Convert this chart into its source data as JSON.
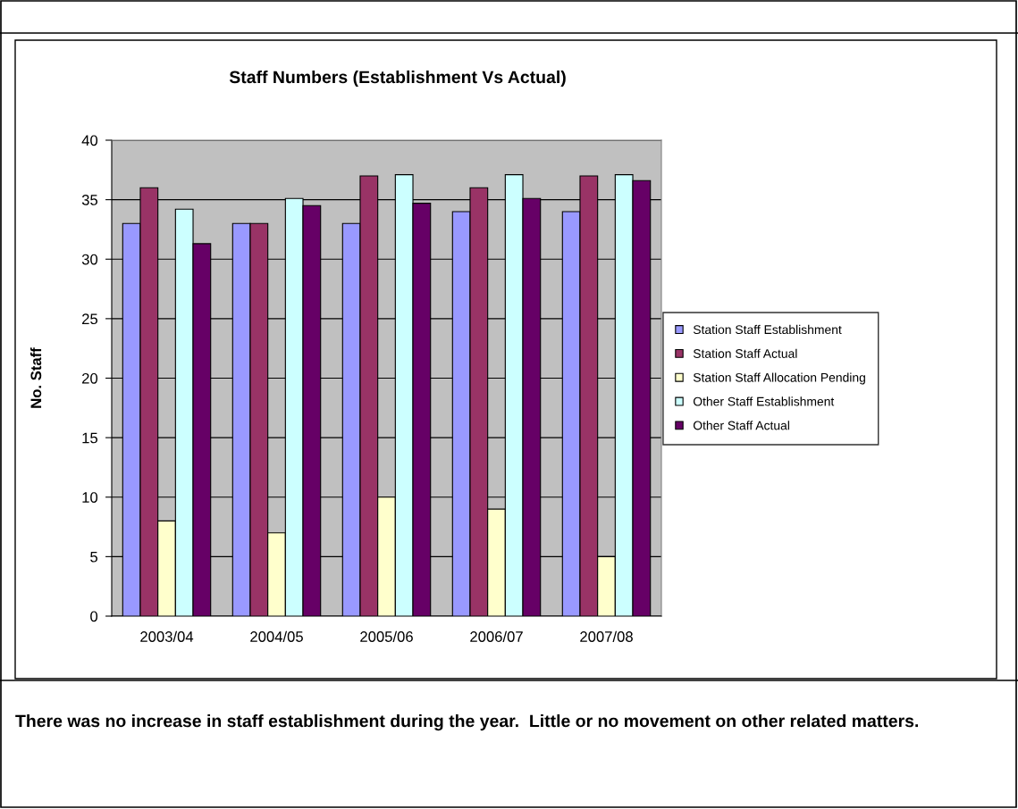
{
  "chart_data": {
    "type": "bar",
    "title": "Staff Numbers (Establishment Vs Actual)",
    "ylabel": "No. Staff",
    "categories": [
      "2003/04",
      "2004/05",
      "2005/06",
      "2006/07",
      "2007/08"
    ],
    "series": [
      {
        "name": "Station Staff Establishment",
        "color": "#9999ff",
        "values": [
          33,
          33,
          33,
          34,
          34
        ]
      },
      {
        "name": "Station Staff Actual",
        "color": "#993366",
        "values": [
          36,
          33,
          37,
          36,
          37
        ]
      },
      {
        "name": "Station Staff Allocation Pending",
        "color": "#ffffcc",
        "values": [
          8,
          7,
          10,
          9,
          5
        ]
      },
      {
        "name": "Other Staff Establishment",
        "color": "#ccffff",
        "values": [
          34.2,
          35.1,
          37.1,
          37.1,
          37.1
        ]
      },
      {
        "name": "Other Staff Actual",
        "color": "#660066",
        "values": [
          31.3,
          34.5,
          34.7,
          35.1,
          36.6
        ]
      }
    ],
    "ylim": [
      0,
      40
    ],
    "yticks": [
      0,
      5,
      10,
      15,
      20,
      25,
      30,
      35,
      40
    ],
    "grid": "y",
    "legend": "right",
    "annotations": [
      "There was no increase in staff establishment during the year.  Little or no movement on other related matters."
    ]
  }
}
